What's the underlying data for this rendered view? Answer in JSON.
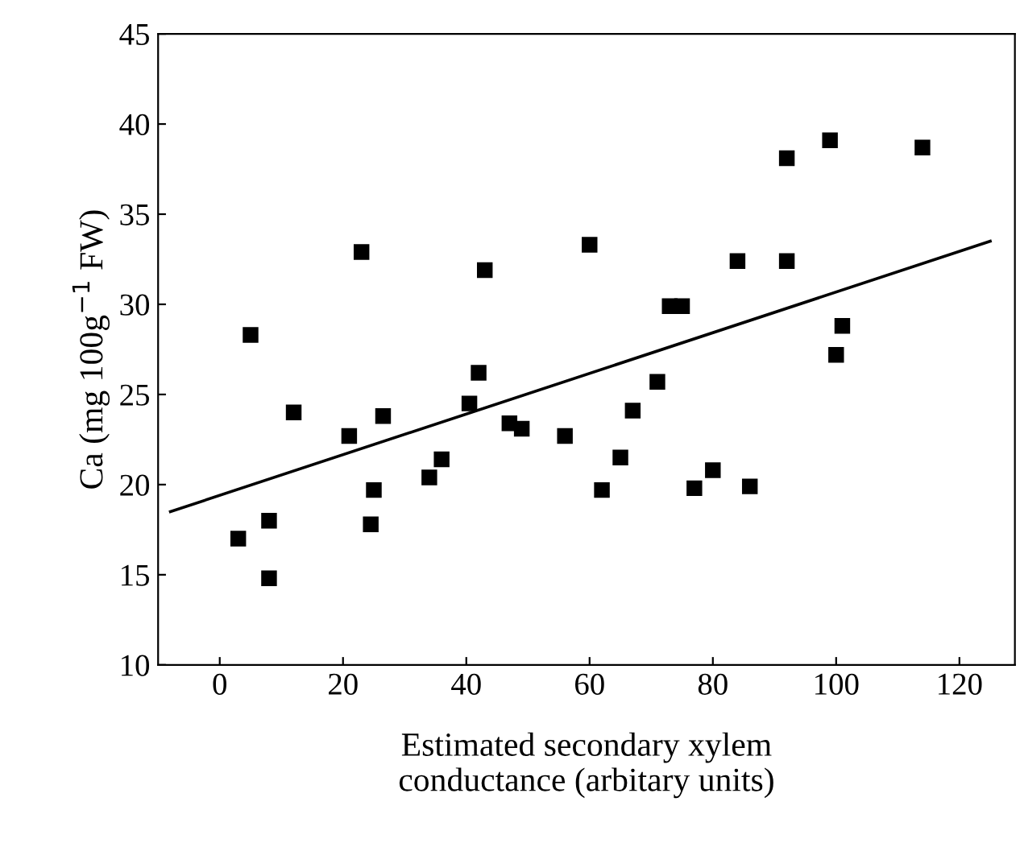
{
  "chart_data": {
    "type": "scatter",
    "xlabel": "Estimated secondary xylem\nconductance (arbitary units)",
    "ylabel": "Ca (mg 100g$^{−1}$ FW)",
    "xlim": [
      -10,
      129
    ],
    "ylim": [
      10,
      45
    ],
    "xticks": [
      0,
      20,
      40,
      60,
      80,
      100,
      120
    ],
    "yticks": [
      10,
      15,
      20,
      25,
      30,
      35,
      40,
      45
    ],
    "marker": "square",
    "grid": false,
    "series": [
      {
        "color": "#000000",
        "x": [
          3,
          5,
          8,
          8,
          12,
          21,
          23,
          24.5,
          25,
          26.5,
          34,
          36,
          40.5,
          42,
          43,
          47,
          49,
          56,
          60,
          62,
          65,
          67,
          71,
          73,
          75,
          77,
          80,
          84,
          86,
          92,
          92,
          99,
          100,
          101,
          114
        ],
        "values": [
          17,
          28.3,
          18,
          14.8,
          24,
          22.7,
          32.9,
          17.8,
          19.7,
          23.8,
          20.4,
          21.4,
          24.5,
          26.2,
          31.9,
          23.4,
          23.1,
          22.7,
          33.3,
          19.7,
          21.5,
          24.1,
          25.7,
          29.9,
          29.9,
          19.8,
          20.8,
          32.4,
          19.9,
          32.4,
          38.1,
          39.1,
          27.2,
          28.8,
          38.7
        ]
      },
      {
        "type": "line",
        "color": "#000000",
        "marker": "none",
        "x": [
          -8,
          125
        ],
        "values": [
          18.5,
          33.5
        ]
      }
    ]
  }
}
